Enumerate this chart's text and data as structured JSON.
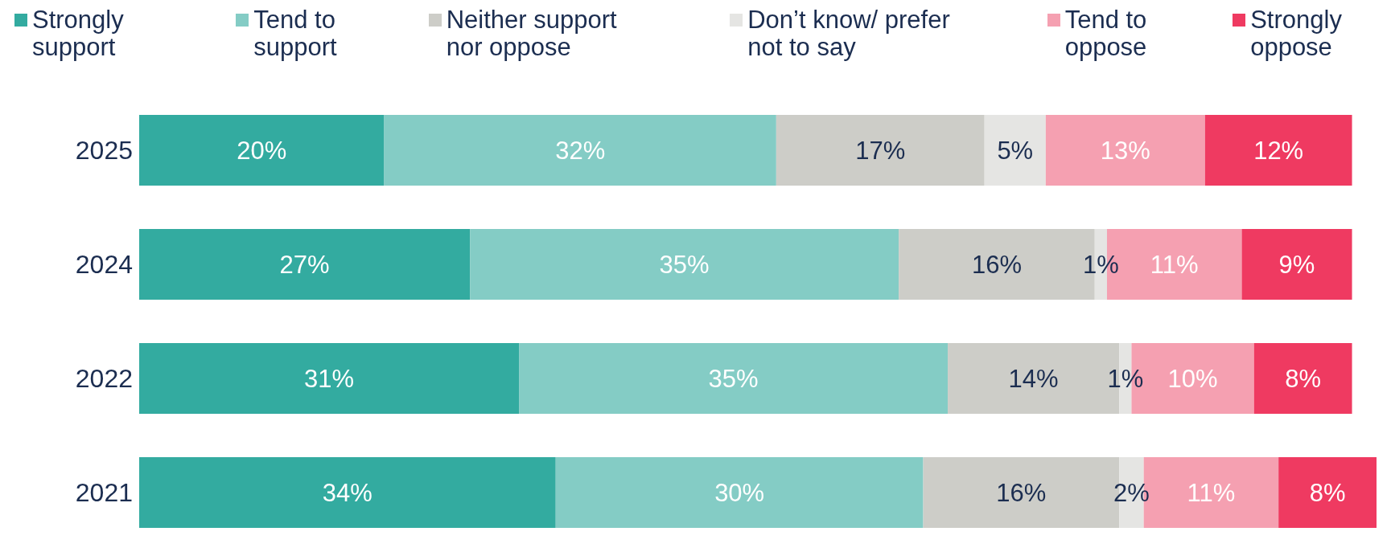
{
  "chart_data": {
    "type": "bar",
    "orientation": "horizontal",
    "stacked": true,
    "categories": [
      "2025",
      "2024",
      "2022",
      "2021"
    ],
    "xlim": [
      0,
      101
    ],
    "legend": "top",
    "series": [
      {
        "name": "Strongly support",
        "color": "#33aba0",
        "values": [
          20,
          27,
          31,
          34
        ],
        "value_labels": [
          "20%",
          "27%",
          "31%",
          "34%"
        ]
      },
      {
        "name": "Tend to support",
        "color": "#84ccc5",
        "values": [
          32,
          35,
          35,
          30
        ],
        "value_labels": [
          "32%",
          "35%",
          "35%",
          "30%"
        ]
      },
      {
        "name": "Neither support nor oppose",
        "color": "#cdcdc8",
        "values": [
          17,
          16,
          14,
          16
        ],
        "value_labels": [
          "17%",
          "16%",
          "14%",
          "16%"
        ]
      },
      {
        "name": "Don’t know/ prefer not to say",
        "color": "#e5e5e3",
        "values": [
          5,
          1,
          1,
          2
        ],
        "value_labels": [
          "5%",
          "1%",
          "1%",
          "2%"
        ]
      },
      {
        "name": "Tend to oppose",
        "color": "#f5a0b1",
        "values": [
          13,
          11,
          10,
          11
        ],
        "value_labels": [
          "13%",
          "11%",
          "10%",
          "11%"
        ]
      },
      {
        "name": "Strongly oppose",
        "color": "#ef3a61",
        "values": [
          12,
          9,
          8,
          8
        ],
        "value_labels": [
          "12%",
          "9%",
          "8%",
          "8%"
        ]
      }
    ]
  }
}
